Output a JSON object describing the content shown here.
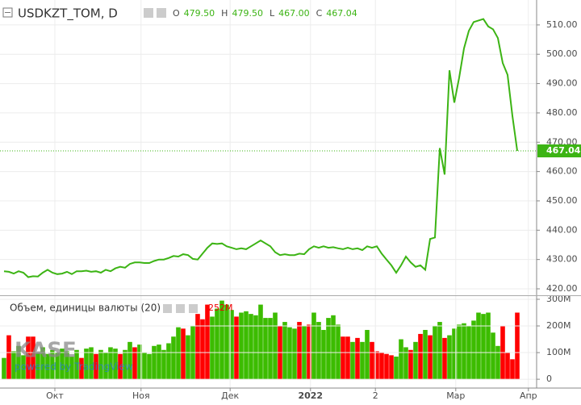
{
  "chart_data": [
    {
      "type": "line",
      "title": "USDKZT_TOM, D",
      "ohlc": [
        {
          "name": "O",
          "value": "479.50"
        },
        {
          "name": "H",
          "value": "479.50"
        },
        {
          "name": "L",
          "value": "467.00"
        },
        {
          "name": "C",
          "value": "467.04"
        }
      ],
      "last_value_label": "467.04",
      "last_value": 467.04,
      "color": "#3cb414",
      "values": [
        426,
        425.8,
        425.2,
        426,
        425.5,
        424,
        424.3,
        424.2,
        425.5,
        426.5,
        425.5,
        425,
        425.2,
        425.8,
        425,
        426,
        426,
        426.2,
        425.8,
        426,
        425.5,
        426.5,
        426,
        427,
        427.5,
        427.2,
        428.5,
        429,
        429,
        428.8,
        428.8,
        429.5,
        430,
        430,
        430.5,
        431.2,
        431,
        431.8,
        431.5,
        430.2,
        430,
        432,
        434,
        435.5,
        435.3,
        435.5,
        434.5,
        434,
        433.5,
        433.8,
        433.5,
        434.5,
        435.5,
        436.5,
        435.5,
        434.5,
        432.5,
        431.5,
        431.8,
        431.5,
        431.5,
        432,
        431.8,
        433.5,
        434.5,
        434,
        434.5,
        434,
        434.2,
        433.8,
        433.5,
        434,
        433.5,
        433.8,
        433.2,
        434.5,
        434,
        434.5,
        432,
        430,
        428,
        425.5,
        428,
        431,
        429,
        427.5,
        428,
        426.5,
        437,
        437.5,
        468,
        459,
        494.5,
        483.5,
        492,
        502,
        508,
        511,
        511.5,
        512,
        509.5,
        508.5,
        505.5,
        497,
        493,
        479,
        467.04
      ],
      "xlim": [
        -0.83,
        110
      ],
      "xticks": [
        {
          "value": 10.5,
          "label": "Окт"
        },
        {
          "value": 28.3,
          "label": "Ноя"
        },
        {
          "value": 46.7,
          "label": "Дек"
        },
        {
          "value": 63.3,
          "label": "2022"
        },
        {
          "value": 76.7,
          "label": "2"
        },
        {
          "value": 93.3,
          "label": "Мар"
        },
        {
          "value": 108.3,
          "label": "Апр"
        }
      ],
      "ylim": [
        417.8,
        518.5
      ],
      "yticks": [
        {
          "value": 420,
          "label": "420.00"
        },
        {
          "value": 430,
          "label": "430.00"
        },
        {
          "value": 440,
          "label": "440.00"
        },
        {
          "value": 450,
          "label": "450.00"
        },
        {
          "value": 460,
          "label": "460.00"
        },
        {
          "value": 470,
          "label": "470.00"
        },
        {
          "value": 480,
          "label": "480.00"
        },
        {
          "value": 490,
          "label": "490.00"
        },
        {
          "value": 500,
          "label": "500.00"
        },
        {
          "value": 510,
          "label": "510.00"
        }
      ],
      "grid": true,
      "watermark": "KASE",
      "watermark_sub": "powered by TradingView"
    },
    {
      "type": "bar",
      "title": "Объем, единицы валюты (20)",
      "annotation": "252M",
      "values": [
        80,
        165,
        105,
        125,
        90,
        160,
        160,
        100,
        120,
        95,
        110,
        100,
        115,
        105,
        85,
        110,
        80,
        115,
        120,
        95,
        110,
        100,
        120,
        115,
        95,
        110,
        140,
        120,
        130,
        100,
        95,
        125,
        130,
        110,
        135,
        160,
        195,
        190,
        165,
        200,
        245,
        225,
        280,
        235,
        265,
        295,
        280,
        260,
        235,
        250,
        255,
        245,
        240,
        280,
        230,
        230,
        250,
        200,
        215,
        195,
        190,
        215,
        200,
        205,
        250,
        215,
        185,
        230,
        240,
        205,
        160,
        160,
        140,
        155,
        140,
        185,
        140,
        105,
        100,
        95,
        90,
        85,
        150,
        120,
        110,
        140,
        170,
        185,
        165,
        200,
        215,
        155,
        165,
        190,
        205,
        210,
        200,
        220,
        250,
        245,
        250,
        175,
        125,
        200,
        100,
        75,
        250
      ],
      "colors": [
        "#3cbc00",
        "#ff0000",
        "#3cbc00",
        "#3cbc00",
        "#3cbc00",
        "#ff0000",
        "#ff0000",
        "#3cbc00",
        "#3cbc00",
        "#3cbc00",
        "#3cbc00",
        "#3cbc00",
        "#3cbc00",
        "#3cbc00",
        "#3cbc00",
        "#3cbc00",
        "#ff0000",
        "#3cbc00",
        "#3cbc00",
        "#ff0000",
        "#3cbc00",
        "#3cbc00",
        "#3cbc00",
        "#3cbc00",
        "#ff0000",
        "#3cbc00",
        "#3cbc00",
        "#ff0000",
        "#3cbc00",
        "#3cbc00",
        "#3cbc00",
        "#3cbc00",
        "#3cbc00",
        "#3cbc00",
        "#3cbc00",
        "#3cbc00",
        "#3cbc00",
        "#ff0000",
        "#3cbc00",
        "#3cbc00",
        "#ff0000",
        "#ff0000",
        "#ff0000",
        "#3cbc00",
        "#3cbc00",
        "#3cbc00",
        "#3cbc00",
        "#3cbc00",
        "#ff0000",
        "#3cbc00",
        "#3cbc00",
        "#3cbc00",
        "#3cbc00",
        "#3cbc00",
        "#3cbc00",
        "#3cbc00",
        "#3cbc00",
        "#ff0000",
        "#3cbc00",
        "#3cbc00",
        "#3cbc00",
        "#ff0000",
        "#3cbc00",
        "#ff0000",
        "#3cbc00",
        "#3cbc00",
        "#3cbc00",
        "#3cbc00",
        "#3cbc00",
        "#3cbc00",
        "#ff0000",
        "#ff0000",
        "#3cbc00",
        "#ff0000",
        "#3cbc00",
        "#3cbc00",
        "#ff0000",
        "#ff0000",
        "#ff0000",
        "#ff0000",
        "#ff0000",
        "#3cbc00",
        "#3cbc00",
        "#3cbc00",
        "#ff0000",
        "#3cbc00",
        "#ff0000",
        "#3cbc00",
        "#ff0000",
        "#3cbc00",
        "#3cbc00",
        "#ff0000",
        "#3cbc00",
        "#3cbc00",
        "#3cbc00",
        "#3cbc00",
        "#3cbc00",
        "#3cbc00",
        "#3cbc00",
        "#3cbc00",
        "#3cbc00",
        "#3cbc00",
        "#3cbc00",
        "#ff0000",
        "#ff0000",
        "#ff0000",
        "#ff0000"
      ],
      "ylim": [
        -33,
        312
      ],
      "yticks": [
        0,
        {
          "value": 100,
          "label": "100M"
        },
        {
          "value": 200,
          "label": "200M"
        },
        {
          "value": 300,
          "label": "300M"
        }
      ]
    }
  ]
}
